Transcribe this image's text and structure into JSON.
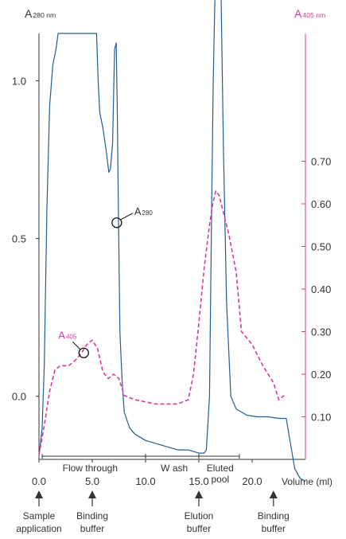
{
  "colors": {
    "a280": "#1f5d99",
    "a405": "#d63aa0",
    "axis": "#333333"
  },
  "chart_data": {
    "type": "line",
    "left_axis_label": {
      "main": "A",
      "sub": "280 nm"
    },
    "right_axis_label": {
      "main": "A",
      "sub": "405 nm"
    },
    "x_axis_label": "Volume (ml)",
    "x_range": [
      0,
      25
    ],
    "y_left_range": [
      -0.2,
      1.15
    ],
    "y_right_range": [
      0.0,
      1.0
    ],
    "x_ticks": [
      {
        "value": 0,
        "label": "0.0"
      },
      {
        "value": 5,
        "label": "5.0"
      },
      {
        "value": 10,
        "label": "10.0"
      },
      {
        "value": 15,
        "label": "15.0"
      },
      {
        "value": 20,
        "label": "20.0"
      }
    ],
    "y_left_ticks": [
      {
        "value": 1.0,
        "label": "1.0"
      },
      {
        "value": 0.5,
        "label": "0.5"
      },
      {
        "value": 0.0,
        "label": "0.0"
      }
    ],
    "y_right_ticks": [
      {
        "value": 0.1,
        "label": "0.10"
      },
      {
        "value": 0.2,
        "label": "0.20"
      },
      {
        "value": 0.3,
        "label": "0.30"
      },
      {
        "value": 0.4,
        "label": "0.40"
      },
      {
        "value": 0.5,
        "label": "0.50"
      },
      {
        "value": 0.6,
        "label": "0.60"
      },
      {
        "value": 0.7,
        "label": "0.70"
      }
    ],
    "series": [
      {
        "name": "A280",
        "axis": "left",
        "style": "solid",
        "color": "#1f5d99",
        "x": [
          0.0,
          0.3,
          0.5,
          0.75,
          1.0,
          1.3,
          1.6,
          1.8,
          1.8,
          5.4,
          5.55,
          5.7,
          6.0,
          6.3,
          6.55,
          6.7,
          6.9,
          7.1,
          7.25,
          7.35,
          7.45,
          7.6,
          7.8,
          8.0,
          8.5,
          9.0,
          10.0,
          11.0,
          12.0,
          13.0,
          14.0,
          15.0,
          15.5,
          15.7,
          16.0,
          16.2,
          16.35,
          16.5,
          16.65,
          16.8,
          16.95,
          17.1,
          17.3,
          17.6,
          18.0,
          18.5,
          19.5,
          20.5,
          21.5,
          22.5,
          23.2,
          23.6,
          24.0,
          24.5,
          25.0
        ],
        "y": [
          -0.19,
          -0.1,
          0.1,
          0.6,
          0.92,
          1.05,
          1.1,
          1.15,
          1.15,
          1.15,
          1.0,
          0.9,
          0.85,
          0.78,
          0.71,
          0.72,
          0.8,
          1.1,
          1.12,
          0.9,
          0.6,
          0.2,
          0.05,
          -0.05,
          -0.1,
          -0.12,
          -0.14,
          -0.15,
          -0.16,
          -0.17,
          -0.17,
          -0.18,
          -0.18,
          -0.17,
          0.0,
          0.6,
          1.0,
          1.25,
          1.35,
          1.38,
          1.37,
          1.25,
          0.8,
          0.3,
          0.0,
          -0.04,
          -0.06,
          -0.065,
          -0.065,
          -0.07,
          -0.07,
          -0.15,
          -0.23,
          -0.26,
          -0.27
        ]
      },
      {
        "name": "A405",
        "axis": "right",
        "style": "dashed",
        "color": "#d63aa0",
        "x": [
          0.0,
          0.5,
          1.0,
          1.5,
          2.0,
          2.8,
          3.5,
          4.0,
          4.5,
          5.0,
          5.5,
          6.0,
          6.5,
          7.0,
          7.5,
          8.0,
          9.0,
          10.0,
          11.0,
          12.0,
          13.0,
          14.0,
          14.5,
          15.0,
          15.5,
          16.0,
          16.3,
          16.6,
          16.9,
          17.3,
          17.8,
          18.5,
          19.0,
          20.0,
          21.0,
          22.0,
          22.5,
          23.0
        ],
        "y": [
          0.01,
          0.08,
          0.16,
          0.21,
          0.22,
          0.22,
          0.235,
          0.25,
          0.27,
          0.28,
          0.26,
          0.205,
          0.19,
          0.2,
          0.19,
          0.15,
          0.14,
          0.135,
          0.13,
          0.13,
          0.13,
          0.14,
          0.2,
          0.32,
          0.45,
          0.55,
          0.6,
          0.63,
          0.62,
          0.58,
          0.53,
          0.44,
          0.3,
          0.27,
          0.22,
          0.18,
          0.14,
          0.15
        ]
      }
    ],
    "annotations": [
      {
        "main": "A",
        "sub": "280",
        "x": 7.3,
        "y": 0.55,
        "axis": "left",
        "color": "#333333"
      },
      {
        "main": "A",
        "sub": "405",
        "x": 4.2,
        "y": 0.25,
        "axis": "right",
        "color": "#d63aa0"
      }
    ],
    "bracket": {
      "axis": "left",
      "y": -0.19,
      "ticks": [
        0.3,
        10.0,
        15.0,
        18.8
      ],
      "segments": [
        {
          "label": "Flow through",
          "center": 4.8
        },
        {
          "label": "W ash",
          "center": 12.7
        },
        {
          "label": "Eluted",
          "center": 17.0
        },
        {
          "label": "pool",
          "center": 17.0
        }
      ]
    },
    "events": [
      {
        "x": 0.0,
        "lines": [
          "Sample",
          "application"
        ]
      },
      {
        "x": 5.0,
        "lines": [
          "Binding",
          "buffer"
        ]
      },
      {
        "x": 15.0,
        "lines": [
          "Elution",
          "buffer"
        ]
      },
      {
        "x": 22.0,
        "lines": [
          "Binding",
          "buffer"
        ]
      }
    ]
  }
}
